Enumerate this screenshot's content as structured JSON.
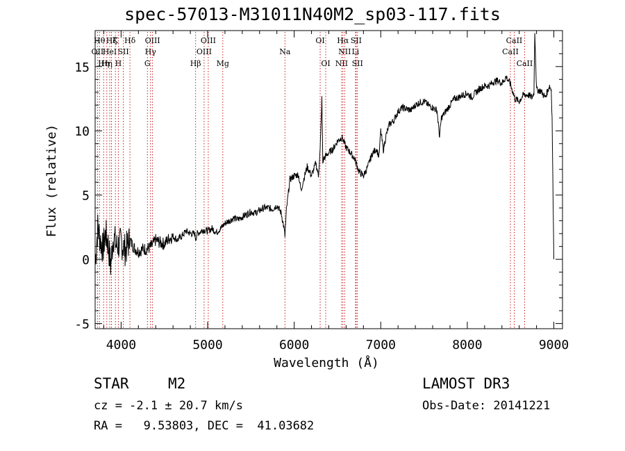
{
  "chart_data": {
    "type": "line",
    "title": "spec-57013-M31011N40M2_sp03-117.fits",
    "xlabel": "Wavelength (Å)",
    "ylabel": "Flux (relative)",
    "xlim": [
      3700,
      9100
    ],
    "ylim": [
      -5.4,
      17.8
    ],
    "xticks": [
      4000,
      5000,
      6000,
      7000,
      8000,
      9000
    ],
    "yticks": [
      -5,
      0,
      5,
      10,
      15
    ],
    "series": [
      {
        "name": "flux",
        "color": "#000000",
        "x": [
          3700,
          3730,
          3760,
          3790,
          3820,
          3850,
          3880,
          3910,
          3950,
          4000,
          4050,
          4100,
          4150,
          4200,
          4250,
          4300,
          4350,
          4400,
          4450,
          4500,
          4550,
          4600,
          4650,
          4700,
          4750,
          4800,
          4850,
          4861,
          4880,
          4950,
          5000,
          5050,
          5100,
          5150,
          5200,
          5250,
          5300,
          5350,
          5400,
          5450,
          5500,
          5550,
          5600,
          5650,
          5700,
          5750,
          5800,
          5850,
          5880,
          5893,
          5910,
          5950,
          6000,
          6050,
          6080,
          6100,
          6150,
          6200,
          6250,
          6280,
          6300,
          6320,
          6330,
          6340,
          6360,
          6400,
          6450,
          6500,
          6550,
          6570,
          6600,
          6650,
          6700,
          6750,
          6800,
          6850,
          6900,
          6950,
          6980,
          7000,
          7030,
          7060,
          7100,
          7150,
          7200,
          7250,
          7300,
          7350,
          7400,
          7450,
          7500,
          7550,
          7600,
          7650,
          7680,
          7700,
          7750,
          7800,
          7850,
          7900,
          7950,
          8000,
          8050,
          8100,
          8150,
          8200,
          8250,
          8300,
          8350,
          8400,
          8450,
          8500,
          8550,
          8600,
          8650,
          8700,
          8750,
          8770,
          8780,
          8800,
          8850,
          8900,
          8950,
          8970,
          8980,
          9000
        ],
        "y": [
          -0.5,
          2.5,
          1.5,
          0.8,
          2.0,
          1.2,
          -0.5,
          1.8,
          1.0,
          1.3,
          0.7,
          1.5,
          0.9,
          0.6,
          0.8,
          0.8,
          1.0,
          1.5,
          1.3,
          1.2,
          1.6,
          1.8,
          1.5,
          1.8,
          2.2,
          2.0,
          2.0,
          1.6,
          2.0,
          2.3,
          2.2,
          2.4,
          2.1,
          2.4,
          2.8,
          3.0,
          3.2,
          3.1,
          3.3,
          3.5,
          3.7,
          3.6,
          3.8,
          4.0,
          4.0,
          3.9,
          4.2,
          3.6,
          2.5,
          1.8,
          3.8,
          6.2,
          6.5,
          6.6,
          5.3,
          6.0,
          7.2,
          6.5,
          7.5,
          6.5,
          8.5,
          12.5,
          7.5,
          7.8,
          8.0,
          8.3,
          8.6,
          9.2,
          9.5,
          9.2,
          8.7,
          8.3,
          7.8,
          6.8,
          6.5,
          7.2,
          8.2,
          8.6,
          8.0,
          10.0,
          8.5,
          9.6,
          10.5,
          10.8,
          11.5,
          11.8,
          11.7,
          11.6,
          12.0,
          12.2,
          12.3,
          12.0,
          11.8,
          11.6,
          9.5,
          11.0,
          11.5,
          12.0,
          12.5,
          12.6,
          12.8,
          12.9,
          12.6,
          13.0,
          13.3,
          13.5,
          13.5,
          13.8,
          13.9,
          13.7,
          14.2,
          13.6,
          12.5,
          12.3,
          12.8,
          12.8,
          12.6,
          13.0,
          17.8,
          13.2,
          13.1,
          12.6,
          13.5,
          13.2,
          11.0,
          0.0
        ]
      }
    ],
    "spectral_lines": [
      {
        "wavelength": 3727,
        "label": "OII",
        "row": 2
      },
      {
        "wavelength": 3750,
        "label": "Hθ",
        "row": 1
      },
      {
        "wavelength": 3798,
        "label": "Hη",
        "row": 3
      },
      {
        "wavelength": 3835,
        "label": "Hη",
        "row": 3
      },
      {
        "wavelength": 3869,
        "label": "HeI",
        "row": 2
      },
      {
        "wavelength": 3889,
        "label": "Hζ",
        "row": 1
      },
      {
        "wavelength": 3934,
        "label": "K",
        "row": 1
      },
      {
        "wavelength": 3968,
        "label": "H",
        "row": 3
      },
      {
        "wavelength": 4026,
        "label": "SII",
        "row": 2
      },
      {
        "wavelength": 4102,
        "label": "Hδ",
        "row": 1
      },
      {
        "wavelength": 4304,
        "label": "G",
        "row": 3
      },
      {
        "wavelength": 4340,
        "label": "Hγ",
        "row": 2
      },
      {
        "wavelength": 4363,
        "label": "OIII",
        "row": 1
      },
      {
        "wavelength": 4861,
        "label": "Hβ",
        "row": 3
      },
      {
        "wavelength": 4959,
        "label": "OIII",
        "row": 2
      },
      {
        "wavelength": 5007,
        "label": "OIII",
        "row": 1
      },
      {
        "wavelength": 5175,
        "label": "Mg",
        "row": 3
      },
      {
        "wavelength": 5893,
        "label": "Na",
        "row": 2
      },
      {
        "wavelength": 6300,
        "label": "OI",
        "row": 1
      },
      {
        "wavelength": 6364,
        "label": "OI",
        "row": 3
      },
      {
        "wavelength": 6548,
        "label": "NII",
        "row": 3
      },
      {
        "wavelength": 6563,
        "label": "Hα",
        "row": 1
      },
      {
        "wavelength": 6583,
        "label": "NII",
        "row": 2
      },
      {
        "wavelength": 6708,
        "label": "Li",
        "row": 2
      },
      {
        "wavelength": 6716,
        "label": "SII",
        "row": 1
      },
      {
        "wavelength": 6731,
        "label": "SII",
        "row": 3
      },
      {
        "wavelength": 8498,
        "label": "CaII",
        "row": 2
      },
      {
        "wavelength": 8542,
        "label": "CaII",
        "row": 1
      },
      {
        "wavelength": 8662,
        "label": "CaII",
        "row": 3
      }
    ]
  },
  "info": {
    "class_label": "STAR",
    "subclass_label": "M2",
    "survey_label": "LAMOST DR3",
    "redshift_text": "cz = -2.1 ± 20.7 km/s",
    "obs_date_text": "Obs-Date: 20141221",
    "coords_text": "RA =   9.53803, DEC =  41.03682"
  }
}
